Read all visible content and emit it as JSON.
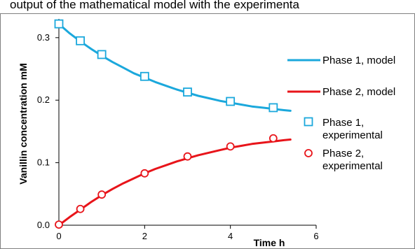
{
  "caption_fragment": "output of the mathematical model with the experimenta",
  "colors": {
    "phase1": "#1ba8dc",
    "phase2": "#e8141a",
    "axis": "#000000",
    "frame": "#808080"
  },
  "chart_data": {
    "type": "line",
    "xlabel": "Time h",
    "ylabel": "Vanillin concentration mM",
    "xlim": [
      0,
      6
    ],
    "ylim": [
      0,
      0.33
    ],
    "xticks": [
      "0",
      "2",
      "4",
      "6"
    ],
    "yticks": [
      "0.0",
      "0.1",
      "0.2",
      "0.3"
    ],
    "xtick_values": [
      0,
      2,
      4,
      6
    ],
    "ytick_values": [
      0,
      0.1,
      0.2,
      0.3
    ],
    "grid": false,
    "legend_position": "right",
    "series": [
      {
        "name": "Phase 1, model",
        "kind": "line",
        "color": "#1ba8dc",
        "x": [
          0,
          0.25,
          0.5,
          0.75,
          1,
          1.25,
          1.5,
          1.75,
          2,
          2.25,
          2.5,
          2.75,
          3,
          3.25,
          3.5,
          3.75,
          4,
          4.25,
          4.5,
          4.75,
          5,
          5.25,
          5.4
        ],
        "y": [
          0.322,
          0.307,
          0.294,
          0.282,
          0.271,
          0.261,
          0.252,
          0.243,
          0.236,
          0.229,
          0.223,
          0.217,
          0.212,
          0.207,
          0.203,
          0.199,
          0.196,
          0.193,
          0.19,
          0.188,
          0.186,
          0.184,
          0.183
        ]
      },
      {
        "name": "Phase 2, model",
        "kind": "line",
        "color": "#e8141a",
        "x": [
          0,
          0.25,
          0.5,
          0.75,
          1,
          1.25,
          1.5,
          1.75,
          2,
          2.25,
          2.5,
          2.75,
          3,
          3.25,
          3.5,
          3.75,
          4,
          4.25,
          4.5,
          4.75,
          5,
          5.25,
          5.4
        ],
        "y": [
          0,
          0.013,
          0.025,
          0.037,
          0.048,
          0.058,
          0.067,
          0.075,
          0.083,
          0.09,
          0.096,
          0.102,
          0.107,
          0.112,
          0.116,
          0.12,
          0.124,
          0.127,
          0.13,
          0.132,
          0.134,
          0.136,
          0.137
        ]
      },
      {
        "name": "Phase 1, experimental",
        "kind": "scatter",
        "marker": "square",
        "color": "#1ba8dc",
        "x": [
          0,
          0.5,
          1,
          2,
          3,
          4,
          5
        ],
        "y": [
          0.322,
          0.295,
          0.273,
          0.238,
          0.213,
          0.198,
          0.188
        ]
      },
      {
        "name": "Phase 2, experimental",
        "kind": "scatter",
        "marker": "circle",
        "color": "#e8141a",
        "x": [
          0,
          0.5,
          1,
          2,
          3,
          4,
          5
        ],
        "y": [
          0.001,
          0.026,
          0.049,
          0.083,
          0.11,
          0.126,
          0.139
        ]
      }
    ],
    "legend": [
      {
        "line1": "Phase 1, model",
        "line2": ""
      },
      {
        "line1": "Phase 2, model",
        "line2": ""
      },
      {
        "line1": "Phase 1,",
        "line2": "experimental"
      },
      {
        "line1": "Phase 2,",
        "line2": "experimental"
      }
    ]
  }
}
